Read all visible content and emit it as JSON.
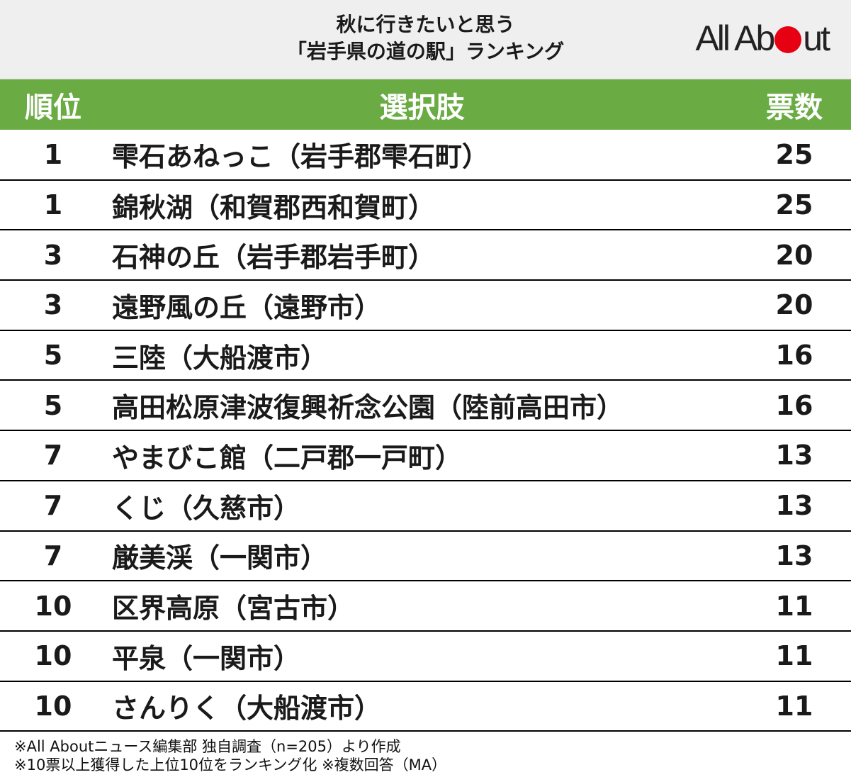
{
  "title": {
    "line1": "秋に行きたいと思う",
    "line2": "「岩手県の道の駅」ランキング"
  },
  "logo": {
    "before": "All Ab",
    "after": "ut"
  },
  "table": {
    "headers": {
      "rank": "順位",
      "choice": "選択肢",
      "votes": "票数"
    },
    "rows": [
      {
        "rank": "1",
        "name": "雫石あねっこ（岩手郡雫石町）",
        "votes": "25"
      },
      {
        "rank": "1",
        "name": "錦秋湖（和賀郡西和賀町）",
        "votes": "25"
      },
      {
        "rank": "3",
        "name": "石神の丘（岩手郡岩手町）",
        "votes": "20"
      },
      {
        "rank": "3",
        "name": "遠野風の丘（遠野市）",
        "votes": "20"
      },
      {
        "rank": "5",
        "name": "三陸（大船渡市）",
        "votes": "16"
      },
      {
        "rank": "5",
        "name": "高田松原津波復興祈念公園（陸前高田市）",
        "votes": "16"
      },
      {
        "rank": "7",
        "name": "やまびこ館（二戸郡一戸町）",
        "votes": "13"
      },
      {
        "rank": "7",
        "name": "くじ（久慈市）",
        "votes": "13"
      },
      {
        "rank": "7",
        "name": "厳美渓（一関市）",
        "votes": "13"
      },
      {
        "rank": "10",
        "name": "区界高原（宮古市）",
        "votes": "11"
      },
      {
        "rank": "10",
        "name": "平泉（一関市）",
        "votes": "11"
      },
      {
        "rank": "10",
        "name": "さんりく（大船渡市）",
        "votes": "11"
      }
    ]
  },
  "footer": {
    "line1": "※All Aboutニュース編集部 独自調査（n=205）より作成",
    "line2": "※10票以上獲得した上位10位をランキング化 ※複数回答（MA）"
  },
  "colors": {
    "header_green": "#6aab44",
    "logo_red": "#e60012",
    "title_bg": "#efefef"
  }
}
